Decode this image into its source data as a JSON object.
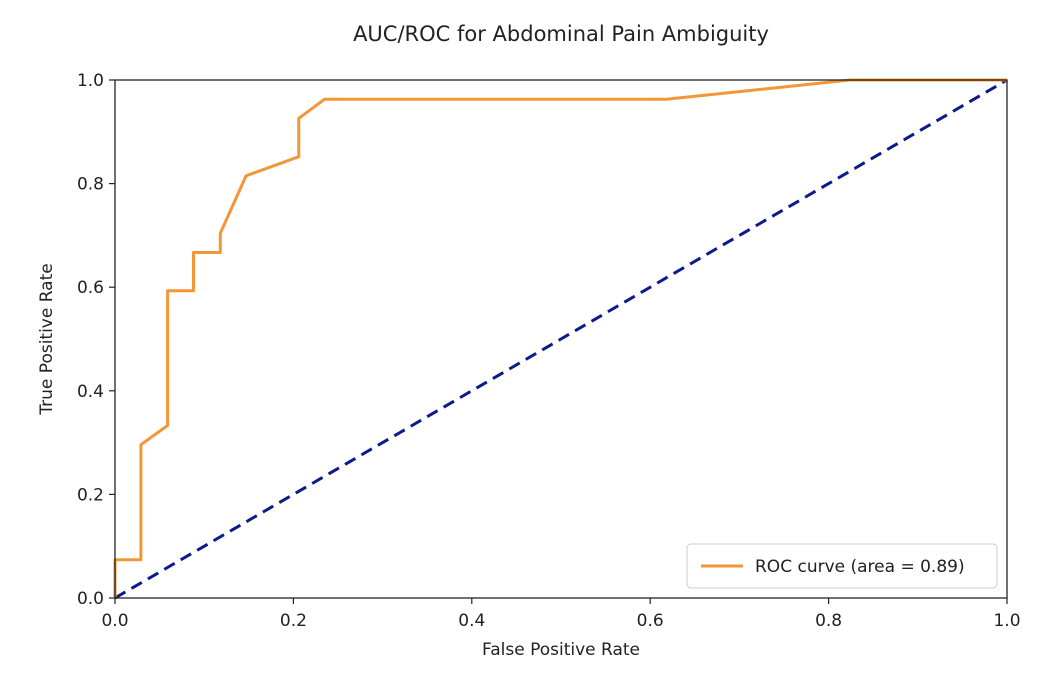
{
  "chart_data": {
    "type": "line",
    "title": "AUC/ROC for Abdominal Pain Ambiguity",
    "xlabel": "False Positive Rate",
    "ylabel": "True Positive Rate",
    "xlim": [
      0.0,
      1.0
    ],
    "ylim": [
      0.0,
      1.0
    ],
    "xticks": [
      "0.0",
      "0.2",
      "0.4",
      "0.6",
      "0.8",
      "1.0"
    ],
    "yticks": [
      "0.0",
      "0.2",
      "0.4",
      "0.6",
      "0.8",
      "1.0"
    ],
    "grid": false,
    "legend_position": "lower-right",
    "series": [
      {
        "name": "ROC curve (area = 0.89)",
        "color": "#f39636",
        "style": "solid",
        "x": [
          0.0,
          0.0,
          0.029,
          0.029,
          0.059,
          0.059,
          0.088,
          0.088,
          0.118,
          0.118,
          0.147,
          0.206,
          0.206,
          0.235,
          0.618,
          0.824,
          1.0
        ],
        "y": [
          0.0,
          0.074,
          0.074,
          0.296,
          0.333,
          0.593,
          0.593,
          0.667,
          0.667,
          0.704,
          0.815,
          0.852,
          0.926,
          0.963,
          0.963,
          1.0,
          1.0
        ]
      },
      {
        "color": "#0c1a8a",
        "style": "dashed",
        "x": [
          0.0,
          1.0
        ],
        "y": [
          0.0,
          1.0
        ]
      }
    ]
  }
}
